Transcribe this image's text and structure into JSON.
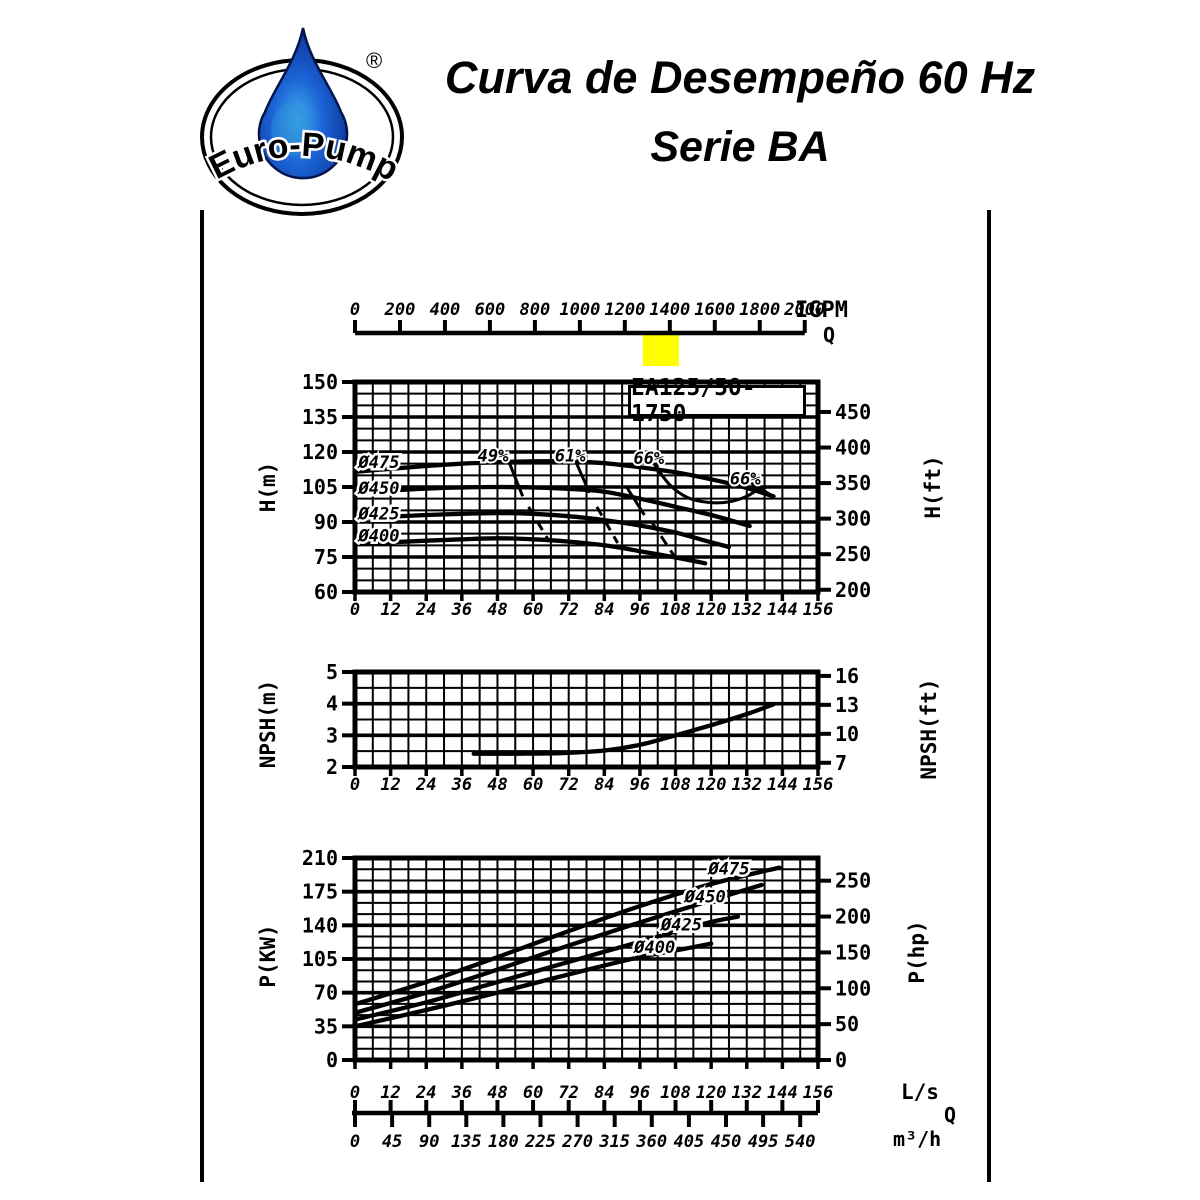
{
  "header": {
    "brand": "Euro-Pump",
    "registered": "®",
    "title_line1": "Curva de Desempeño 60 Hz",
    "title_line2": "Serie BA",
    "drop_colors": {
      "outline": "#05154a",
      "deep": "#0a2f8f",
      "mid": "#1b63d6",
      "light": "#3fb0ea"
    }
  },
  "top_axis": {
    "unit": "IGPM",
    "flow_symbol": "Q",
    "ticks": [
      0,
      200,
      400,
      600,
      800,
      1000,
      1200,
      1400,
      1600,
      1800,
      2000
    ],
    "highlight": {
      "from": 1280,
      "to": 1440,
      "color": "#ffff00"
    }
  },
  "bottom_axis": {
    "ls_unit": "L/s",
    "flow_symbol": "Q",
    "m3h_unit": "m³/h",
    "ls_ticks": [
      0,
      12,
      24,
      36,
      48,
      60,
      72,
      84,
      96,
      108,
      120,
      132,
      144,
      156
    ],
    "m3h_ticks": [
      0,
      45,
      90,
      135,
      180,
      225,
      270,
      315,
      360,
      405,
      450,
      495,
      540
    ]
  },
  "chart_data": [
    {
      "id": "head",
      "type": "line",
      "title": "EA125/50-1750",
      "xlim": [
        0,
        156
      ],
      "x_minor_step": 6,
      "x_ticks": [
        0,
        12,
        24,
        36,
        48,
        60,
        72,
        84,
        96,
        108,
        120,
        132,
        144,
        156
      ],
      "ylim": [
        60,
        150
      ],
      "y_minor_step": 5,
      "y_ticks": [
        60,
        75,
        90,
        105,
        120,
        135,
        150
      ],
      "ylabel_left": "H(m)",
      "ylabel_right": "H(ft)",
      "right_ticks": [
        200,
        250,
        300,
        350,
        400,
        450
      ],
      "right_factor": 0.3048,
      "series": [
        {
          "name": "Ø475",
          "label_at": [
            1.2,
            115.8
          ],
          "points": [
            [
              0,
              111.5
            ],
            [
              12,
              112.8
            ],
            [
              24,
              114
            ],
            [
              36,
              115
            ],
            [
              48,
              115.6
            ],
            [
              60,
              116
            ],
            [
              72,
              116
            ],
            [
              84,
              115.2
            ],
            [
              96,
              113.5
            ],
            [
              108,
              111.3
            ],
            [
              120,
              108.3
            ],
            [
              130,
              105.3
            ],
            [
              141,
              101
            ]
          ]
        },
        {
          "name": "Ø450",
          "label_at": [
            1.2,
            104.5
          ],
          "points": [
            [
              0,
              102.5
            ],
            [
              12,
              103.5
            ],
            [
              24,
              104.3
            ],
            [
              36,
              104.8
            ],
            [
              48,
              105
            ],
            [
              60,
              104.8
            ],
            [
              72,
              104.2
            ],
            [
              84,
              103
            ],
            [
              96,
              100
            ],
            [
              108,
              96.5
            ],
            [
              120,
              93
            ],
            [
              133,
              88.3
            ]
          ]
        },
        {
          "name": "Ø425",
          "label_at": [
            1.2,
            93.6
          ],
          "points": [
            [
              0,
              91.5
            ],
            [
              12,
              92.3
            ],
            [
              24,
              93
            ],
            [
              36,
              93.5
            ],
            [
              48,
              93.8
            ],
            [
              60,
              93.5
            ],
            [
              72,
              92.5
            ],
            [
              84,
              90.8
            ],
            [
              96,
              88.5
            ],
            [
              108,
              85.5
            ],
            [
              118,
              82
            ],
            [
              126,
              79.3
            ]
          ]
        },
        {
          "name": "Ø400",
          "label_at": [
            1.2,
            84.2
          ],
          "points": [
            [
              0,
              80.5
            ],
            [
              12,
              81.3
            ],
            [
              24,
              82
            ],
            [
              36,
              82.6
            ],
            [
              48,
              83
            ],
            [
              60,
              82.6
            ],
            [
              72,
              81.6
            ],
            [
              84,
              80
            ],
            [
              96,
              77.5
            ],
            [
              108,
              74.8
            ],
            [
              118,
              72.3
            ]
          ]
        }
      ],
      "efficiency_labels": [
        {
          "text": "49%",
          "x": 46.5,
          "y": 118.6
        },
        {
          "text": "61%",
          "x": 72.5,
          "y": 118.6
        },
        {
          "text": "66%",
          "x": 99.0,
          "y": 117.4
        },
        {
          "text": "66%",
          "x": 131.5,
          "y": 108.6
        }
      ],
      "efficiency_lines": [
        {
          "points": [
            [
              51.5,
              117
            ],
            [
              56.5,
              101
            ]
          ],
          "dash": false
        },
        {
          "points": [
            [
              58.5,
              96.5
            ],
            [
              65.5,
              81.5
            ]
          ],
          "dash": true
        },
        {
          "points": [
            [
              74,
              117
            ],
            [
              79,
              102.5
            ]
          ],
          "dash": false
        },
        {
          "points": [
            [
              81.5,
              96.5
            ],
            [
              88.5,
              81
            ]
          ],
          "dash": true
        },
        {
          "points": [
            [
              91.5,
              105
            ],
            [
              97.5,
              93
            ]
          ],
          "dash": false
        },
        {
          "points": [
            [
              100,
              90
            ],
            [
              107.5,
              75.5
            ]
          ],
          "dash": true
        },
        {
          "points": [
            [
              133.5,
              106.8
            ],
            [
              141.5,
              100.5
            ]
          ],
          "dash": false
        }
      ],
      "efficiency_island": [
        [
          101,
          114.5
        ],
        [
          106,
          106
        ],
        [
          112,
          100.5
        ],
        [
          119,
          98.4
        ],
        [
          126,
          98.6
        ],
        [
          132,
          101
        ],
        [
          137,
          105
        ]
      ]
    },
    {
      "id": "npsh",
      "type": "line",
      "xlim": [
        0,
        156
      ],
      "x_minor_step": 6,
      "x_ticks": [
        0,
        12,
        24,
        36,
        48,
        60,
        72,
        84,
        96,
        108,
        120,
        132,
        144,
        156
      ],
      "ylim": [
        2,
        5
      ],
      "y_minor_step": 0.5,
      "y_ticks": [
        2,
        3,
        4,
        5
      ],
      "ylabel_left": "NPSH(m)",
      "ylabel_right": "NPSH(ft)",
      "right_ticks": [
        7,
        10,
        13,
        16
      ],
      "right_factor": 0.3048,
      "series": [
        {
          "name": "NPSH",
          "points": [
            [
              40,
              2.42
            ],
            [
              55,
              2.42
            ],
            [
              70,
              2.44
            ],
            [
              84,
              2.52
            ],
            [
              96,
              2.7
            ],
            [
              108,
              3.0
            ],
            [
              120,
              3.32
            ],
            [
              132,
              3.67
            ],
            [
              141,
              3.98
            ]
          ]
        }
      ]
    },
    {
      "id": "power",
      "type": "line",
      "xlim": [
        0,
        156
      ],
      "x_minor_step": 6,
      "x_ticks": [
        0,
        12,
        24,
        36,
        48,
        60,
        72,
        84,
        96,
        108,
        120,
        132,
        144,
        156
      ],
      "ylim": [
        0,
        210
      ],
      "y_minor_step": 11.6667,
      "y_ticks": [
        0,
        35,
        70,
        105,
        140,
        175,
        210
      ],
      "ylabel_left": "P(KW)",
      "ylabel_right": "P(hp)",
      "right_ticks": [
        0,
        50,
        100,
        150,
        200,
        250
      ],
      "right_factor": 0.7457,
      "series": [
        {
          "name": "Ø475",
          "label_at": [
            126,
            199
          ],
          "points": [
            [
              0,
              58
            ],
            [
              24,
              81
            ],
            [
              48,
              107
            ],
            [
              72,
              134
            ],
            [
              96,
              160
            ],
            [
              120,
              183
            ],
            [
              143,
              200
            ]
          ]
        },
        {
          "name": "Ø450",
          "label_at": [
            118,
            170
          ],
          "points": [
            [
              0,
              49
            ],
            [
              24,
              70
            ],
            [
              48,
              94
            ],
            [
              72,
              119
            ],
            [
              96,
              143
            ],
            [
              120,
              166
            ],
            [
              137,
              182
            ]
          ]
        },
        {
          "name": "Ø425",
          "label_at": [
            110,
            141
          ],
          "points": [
            [
              0,
              42
            ],
            [
              24,
              60
            ],
            [
              48,
              81
            ],
            [
              72,
              102
            ],
            [
              96,
              123
            ],
            [
              118,
              142
            ],
            [
              129,
              149
            ]
          ]
        },
        {
          "name": "Ø400",
          "label_at": [
            101,
            117.5
          ],
          "points": [
            [
              0,
              35
            ],
            [
              24,
              52
            ],
            [
              48,
              70
            ],
            [
              72,
              89
            ],
            [
              96,
              107
            ],
            [
              110,
              115
            ],
            [
              120,
              121
            ]
          ]
        }
      ]
    }
  ]
}
